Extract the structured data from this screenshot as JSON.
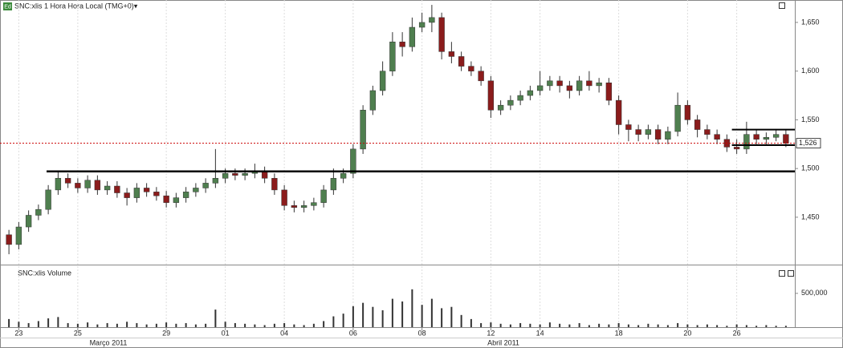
{
  "header": {
    "icon": "Ed"
  },
  "chart_data": [
    {
      "type": "candlestick",
      "title": "SNC:xlis 1 Hora Hora Local (TMG+0)▾",
      "up_color": "#4f7f4f",
      "down_color": "#8b1c1c",
      "open": [
        1432,
        1422,
        1440,
        1452,
        1458,
        1478,
        1490,
        1485,
        1480,
        1488,
        1478,
        1482,
        1475,
        1470,
        1480,
        1476,
        1472,
        1465,
        1470,
        1476,
        1480,
        1485,
        1490,
        1495,
        1493,
        1495,
        1497,
        1490,
        1478,
        1462,
        1460,
        1462,
        1465,
        1478,
        1490,
        1495,
        1520,
        1560,
        1580,
        1600,
        1630,
        1625,
        1645,
        1650,
        1655,
        1620,
        1615,
        1605,
        1600,
        1590,
        1560,
        1565,
        1570,
        1575,
        1580,
        1585,
        1590,
        1585,
        1580,
        1590,
        1585,
        1588,
        1570,
        1545,
        1540,
        1535,
        1540,
        1530,
        1538,
        1565,
        1550,
        1540,
        1535,
        1530,
        1522,
        1520,
        1535,
        1530,
        1532,
        1535
      ],
      "high": [
        1437,
        1445,
        1457,
        1463,
        1483,
        1498,
        1495,
        1490,
        1493,
        1493,
        1487,
        1487,
        1480,
        1485,
        1485,
        1481,
        1477,
        1475,
        1481,
        1485,
        1490,
        1520,
        1500,
        1500,
        1500,
        1505,
        1502,
        1495,
        1483,
        1467,
        1467,
        1470,
        1483,
        1500,
        1500,
        1525,
        1565,
        1585,
        1610,
        1640,
        1640,
        1655,
        1660,
        1668,
        1660,
        1630,
        1620,
        1610,
        1605,
        1595,
        1570,
        1575,
        1580,
        1585,
        1600,
        1595,
        1595,
        1590,
        1595,
        1600,
        1593,
        1593,
        1575,
        1550,
        1545,
        1545,
        1545,
        1543,
        1578,
        1570,
        1555,
        1545,
        1540,
        1535,
        1530,
        1548,
        1540,
        1537,
        1540,
        1540
      ],
      "low": [
        1412,
        1417,
        1435,
        1447,
        1453,
        1473,
        1480,
        1475,
        1475,
        1473,
        1473,
        1470,
        1462,
        1465,
        1471,
        1467,
        1460,
        1460,
        1465,
        1471,
        1475,
        1480,
        1485,
        1488,
        1488,
        1490,
        1485,
        1473,
        1457,
        1455,
        1455,
        1457,
        1460,
        1473,
        1485,
        1490,
        1515,
        1555,
        1575,
        1595,
        1615,
        1620,
        1640,
        1640,
        1612,
        1608,
        1600,
        1595,
        1585,
        1552,
        1555,
        1560,
        1565,
        1570,
        1575,
        1580,
        1578,
        1572,
        1575,
        1580,
        1578,
        1565,
        1535,
        1528,
        1528,
        1530,
        1525,
        1525,
        1533,
        1545,
        1532,
        1530,
        1525,
        1517,
        1515,
        1515,
        1525,
        1525,
        1528,
        1522
      ],
      "close": [
        1422,
        1440,
        1452,
        1458,
        1478,
        1490,
        1485,
        1480,
        1488,
        1478,
        1482,
        1475,
        1470,
        1480,
        1476,
        1472,
        1465,
        1470,
        1476,
        1480,
        1485,
        1490,
        1495,
        1493,
        1495,
        1497,
        1490,
        1478,
        1462,
        1460,
        1462,
        1465,
        1478,
        1490,
        1495,
        1520,
        1560,
        1580,
        1600,
        1630,
        1625,
        1645,
        1650,
        1655,
        1620,
        1615,
        1605,
        1600,
        1590,
        1560,
        1565,
        1570,
        1575,
        1580,
        1585,
        1590,
        1585,
        1580,
        1590,
        1585,
        1588,
        1570,
        1545,
        1540,
        1535,
        1540,
        1530,
        1538,
        1565,
        1550,
        1540,
        1535,
        1530,
        1522,
        1520,
        1535,
        1530,
        1532,
        1535,
        1526
      ],
      "ylim": [
        1403,
        1673
      ],
      "yticks": [
        {
          "value": 1450,
          "label": "1,450"
        },
        {
          "value": 1500,
          "label": "1,500"
        },
        {
          "value": 1550,
          "label": "1,550"
        },
        {
          "value": 1600,
          "label": "1,600"
        },
        {
          "value": 1650,
          "label": "1,650"
        }
      ],
      "support_level": 1497,
      "channel": [
        1540,
        1524
      ],
      "last_price": {
        "value": 1526,
        "label": "1,526"
      }
    },
    {
      "type": "bar",
      "title": "SNC:xlis Volume",
      "color": "#333333",
      "grid": true,
      "categories": [
        null,
        "23",
        null,
        null,
        null,
        null,
        null,
        "25",
        null,
        null,
        null,
        null,
        null,
        null,
        null,
        null,
        "29",
        null,
        null,
        null,
        null,
        null,
        "01",
        null,
        null,
        null,
        null,
        null,
        "04",
        null,
        null,
        null,
        null,
        null,
        null,
        "06",
        null,
        null,
        null,
        null,
        null,
        null,
        "08",
        null,
        null,
        null,
        null,
        null,
        null,
        "12",
        null,
        null,
        null,
        null,
        "14",
        null,
        null,
        null,
        null,
        null,
        null,
        null,
        "18",
        null,
        null,
        null,
        null,
        null,
        null,
        "20",
        null,
        null,
        null,
        null,
        "26",
        null,
        null,
        null,
        null,
        null
      ],
      "values": [
        120000,
        80000,
        60000,
        90000,
        130000,
        150000,
        60000,
        50000,
        70000,
        40000,
        60000,
        50000,
        80000,
        60000,
        40000,
        50000,
        70000,
        50000,
        60000,
        40000,
        50000,
        260000,
        80000,
        60000,
        50000,
        40000,
        30000,
        50000,
        60000,
        40000,
        30000,
        50000,
        90000,
        160000,
        200000,
        310000,
        360000,
        300000,
        250000,
        420000,
        380000,
        560000,
        330000,
        420000,
        280000,
        300000,
        180000,
        120000,
        60000,
        70000,
        50000,
        40000,
        60000,
        50000,
        40000,
        70000,
        50000,
        40000,
        60000,
        30000,
        50000,
        40000,
        60000,
        40000,
        30000,
        50000,
        40000,
        30000,
        60000,
        40000,
        30000,
        40000,
        30000,
        20000,
        40000,
        30000,
        20000,
        30000,
        20000,
        20000
      ],
      "ylim": [
        0,
        890000
      ],
      "yticks": [
        {
          "value": 500000,
          "label": "500,000"
        }
      ],
      "months": [
        "Março 2011",
        "Abril 2011"
      ]
    }
  ]
}
